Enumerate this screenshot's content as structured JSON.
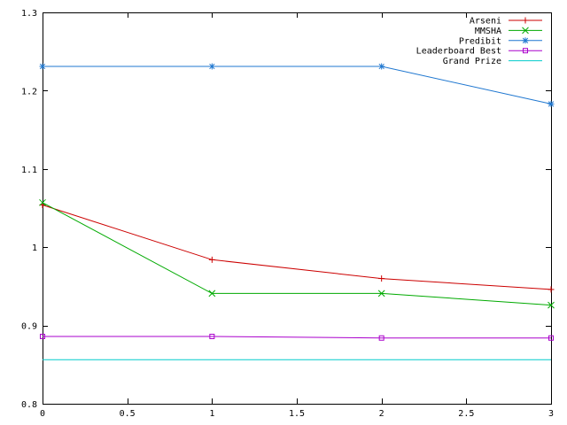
{
  "chart_data": {
    "type": "line",
    "title": "",
    "xlabel": "",
    "ylabel": "",
    "xlim": [
      0,
      3
    ],
    "ylim": [
      0.8,
      1.3
    ],
    "x_ticks": [
      0,
      0.5,
      1,
      1.5,
      2,
      2.5,
      3
    ],
    "x_tick_labels": [
      "0",
      "0.5",
      "1",
      "1.5",
      "2",
      "2.5",
      "3"
    ],
    "y_ticks": [
      0.8,
      0.9,
      1.0,
      1.1,
      1.2,
      1.3
    ],
    "y_tick_labels": [
      "0.8",
      "0.9",
      "1",
      "1.1",
      "1.2",
      "1.3"
    ],
    "grid": false,
    "legend_position": "top-right",
    "series": [
      {
        "name": "Arseni",
        "color": "#cc0000",
        "marker": "plus",
        "x": [
          0,
          1,
          2,
          3
        ],
        "y": [
          1.054,
          0.984,
          0.96,
          0.946
        ]
      },
      {
        "name": "MMSHA",
        "color": "#00aa00",
        "marker": "cross",
        "x": [
          0,
          1,
          2,
          3
        ],
        "y": [
          1.057,
          0.941,
          0.941,
          0.926
        ]
      },
      {
        "name": "Predibit",
        "color": "#1f77d0",
        "marker": "star",
        "x": [
          0,
          1,
          2,
          3
        ],
        "y": [
          1.231,
          1.231,
          1.231,
          1.183
        ]
      },
      {
        "name": "Leaderboard Best",
        "color": "#aa00cc",
        "marker": "square",
        "x": [
          0,
          1,
          2,
          3
        ],
        "y": [
          0.886,
          0.886,
          0.884,
          0.884
        ]
      },
      {
        "name": "Grand Prize",
        "color": "#00cccc",
        "marker": "none",
        "x": [
          0,
          3
        ],
        "y": [
          0.8563,
          0.8563
        ]
      }
    ]
  }
}
